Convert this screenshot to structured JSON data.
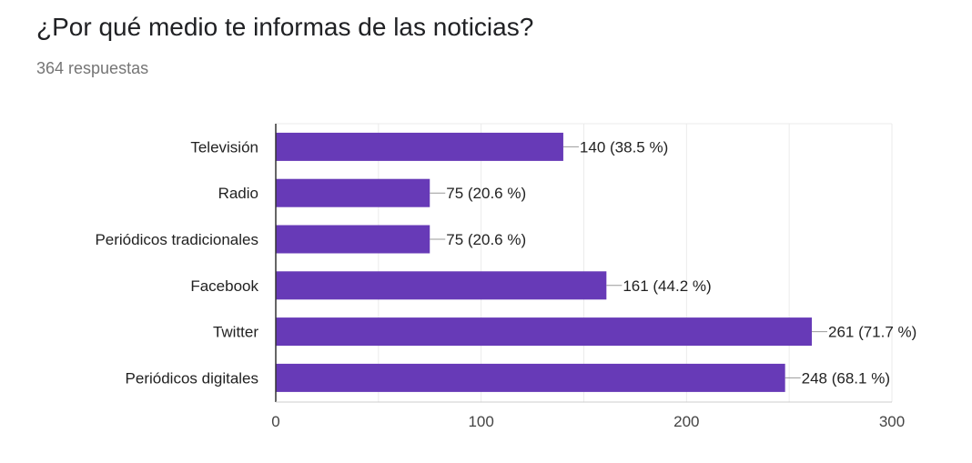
{
  "header": {
    "title": "¿Por qué medio te informas de las noticias?",
    "subtitle": "364 respuestas"
  },
  "colors": {
    "bar": "#673ab7",
    "grid": "#ebebeb",
    "axis": "#333333",
    "leader": "#999999"
  },
  "chart_data": {
    "type": "bar",
    "orientation": "horizontal",
    "categories": [
      "Televisión",
      "Radio",
      "Periódicos tradicionales",
      "Facebook",
      "Twitter",
      "Periódicos digitales"
    ],
    "values": [
      140,
      75,
      75,
      161,
      261,
      248
    ],
    "labels": [
      "140 (38.5 %)",
      "75 (20.6 %)",
      "75 (20.6 %)",
      "161 (44.2 %)",
      "261 (71.7 %)",
      "248 (68.1 %)"
    ],
    "xlim": [
      0,
      300
    ],
    "xticks": [
      0,
      100,
      200,
      300
    ],
    "xtick_labels": [
      "0",
      "100",
      "200",
      "300"
    ],
    "grid": true
  }
}
